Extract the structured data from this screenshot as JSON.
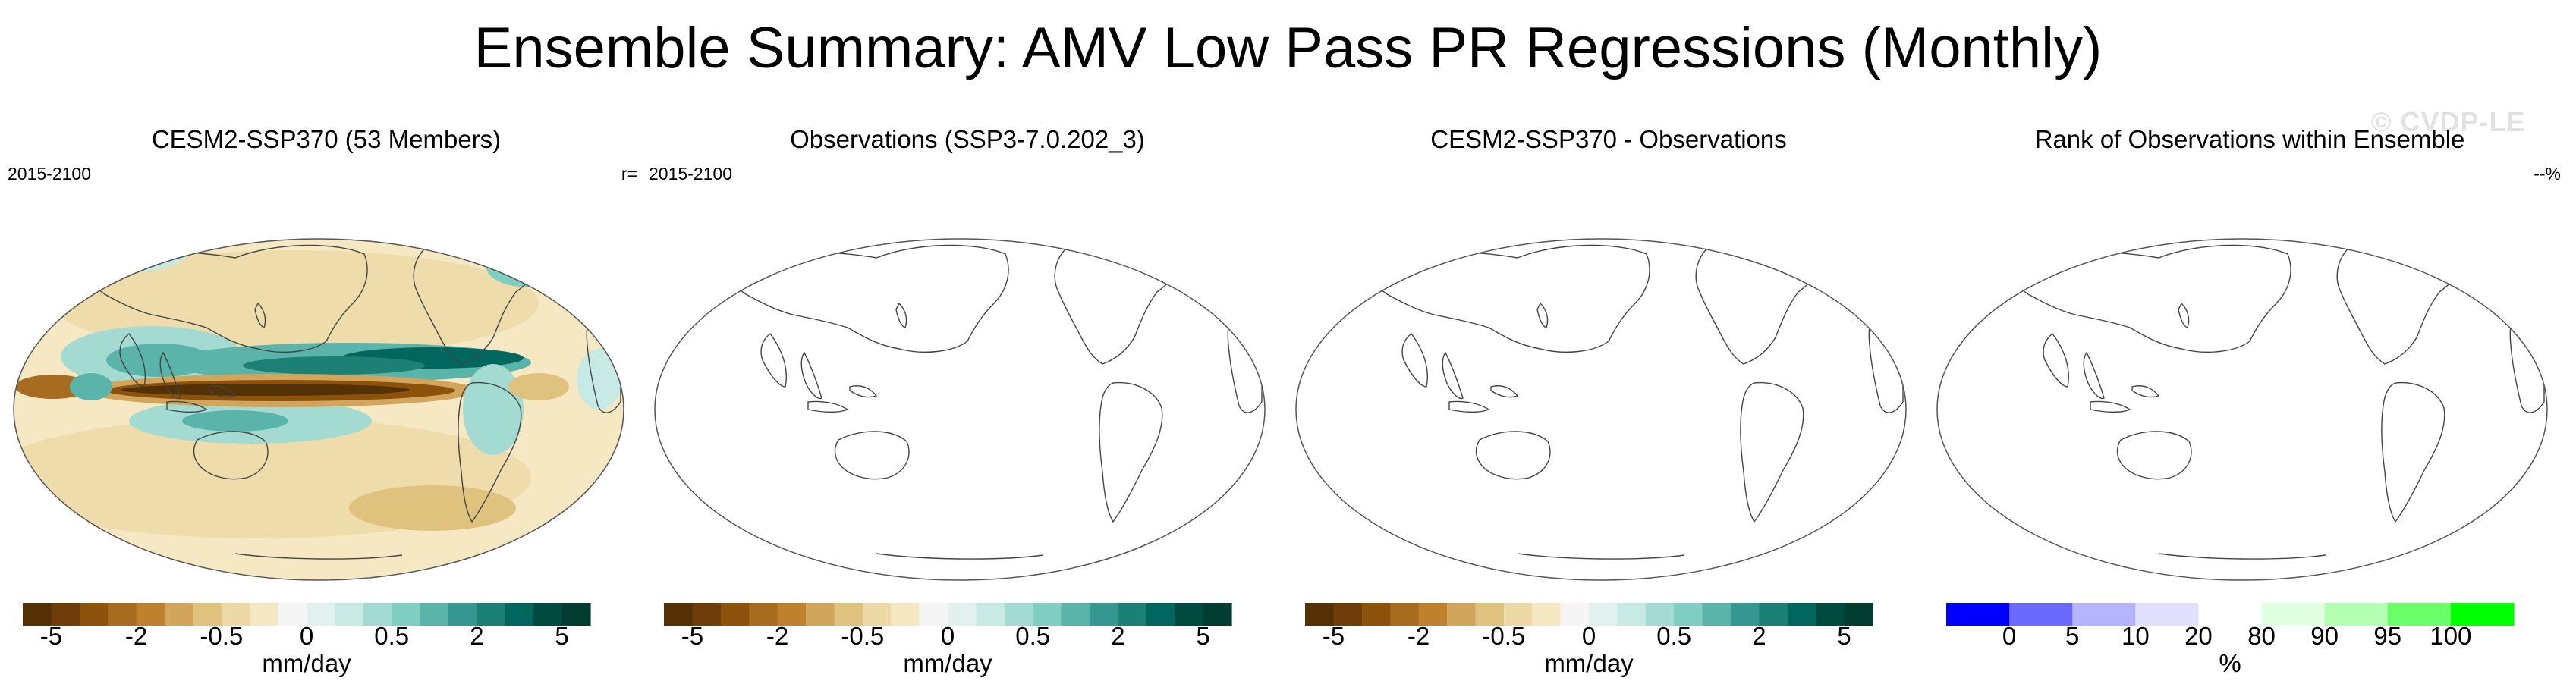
{
  "title": "Ensemble Summary: AMV Low Pass PR Regressions (Monthly)",
  "watermark": "© CVDP-LE",
  "panels": [
    {
      "title": "CESM2-SSP370 (53 Members)",
      "left_label": "2015-2100",
      "right_label": "r="
    },
    {
      "title": "Observations (SSP3-7.0.202_3)",
      "left_label": "2015-2100",
      "right_label": ""
    },
    {
      "title": "CESM2-SSP370 - Observations",
      "left_label": "",
      "right_label": ""
    },
    {
      "title": "Rank of Observations within Ensemble",
      "left_label": "",
      "right_label": "--%"
    }
  ],
  "chart_data": [
    {
      "type": "heatmap",
      "title": "CESM2-SSP370 (53 Members)",
      "subtitle_left": "2015-2100",
      "subtitle_right": "r=",
      "field": "AMV low pass PR regression (ensemble mean)",
      "colorbar": {
        "units": "mm/day",
        "tick_labels": [
          "-5",
          "-2",
          "-0.5",
          "0",
          "0.5",
          "2",
          "5"
        ],
        "colors": [
          "#543005",
          "#6f3d09",
          "#8c510a",
          "#a76c1f",
          "#bf812d",
          "#d2a55d",
          "#dfc27d",
          "#ecd9a6",
          "#f6e8c3",
          "#f5f5f5",
          "#e2f1ee",
          "#c7eae5",
          "#a3dbd2",
          "#80cdc1",
          "#5ab4a9",
          "#35978f",
          "#1d8075",
          "#01665e",
          "#004a40",
          "#003c30"
        ]
      }
    },
    {
      "type": "heatmap",
      "title": "Observations (SSP3-7.0.202_3)",
      "subtitle_left": "2015-2100",
      "field": "no data shown",
      "colorbar": {
        "units": "mm/day",
        "tick_labels": [
          "-5",
          "-2",
          "-0.5",
          "0",
          "0.5",
          "2",
          "5"
        ],
        "colors": [
          "#543005",
          "#6f3d09",
          "#8c510a",
          "#a76c1f",
          "#bf812d",
          "#d2a55d",
          "#dfc27d",
          "#ecd9a6",
          "#f6e8c3",
          "#f5f5f5",
          "#e2f1ee",
          "#c7eae5",
          "#a3dbd2",
          "#80cdc1",
          "#5ab4a9",
          "#35978f",
          "#1d8075",
          "#01665e",
          "#004a40",
          "#003c30"
        ]
      }
    },
    {
      "type": "heatmap",
      "title": "CESM2-SSP370 - Observations",
      "field": "no data shown",
      "colorbar": {
        "units": "mm/day",
        "tick_labels": [
          "-5",
          "-2",
          "-0.5",
          "0",
          "0.5",
          "2",
          "5"
        ],
        "colors": [
          "#543005",
          "#6f3d09",
          "#8c510a",
          "#a76c1f",
          "#bf812d",
          "#d2a55d",
          "#dfc27d",
          "#ecd9a6",
          "#f6e8c3",
          "#f5f5f5",
          "#e2f1ee",
          "#c7eae5",
          "#a3dbd2",
          "#80cdc1",
          "#5ab4a9",
          "#35978f",
          "#1d8075",
          "#01665e",
          "#004a40",
          "#003c30"
        ]
      }
    },
    {
      "type": "heatmap",
      "title": "Rank of Observations within Ensemble",
      "subtitle_right": "--%",
      "field": "no data shown",
      "colorbar": {
        "units": "%",
        "tick_labels": [
          "0",
          "5",
          "10",
          "20",
          "80",
          "90",
          "95",
          "100"
        ],
        "boundaries": [
          0,
          5,
          10,
          20,
          80,
          90,
          95,
          100
        ],
        "colors": [
          "#0000ff",
          "#6a6aff",
          "#b4b4ff",
          "#e1e1ff",
          "#ffffff",
          "#e1ffe1",
          "#b4ffb4",
          "#6aff6a",
          "#00ff00"
        ]
      }
    }
  ]
}
